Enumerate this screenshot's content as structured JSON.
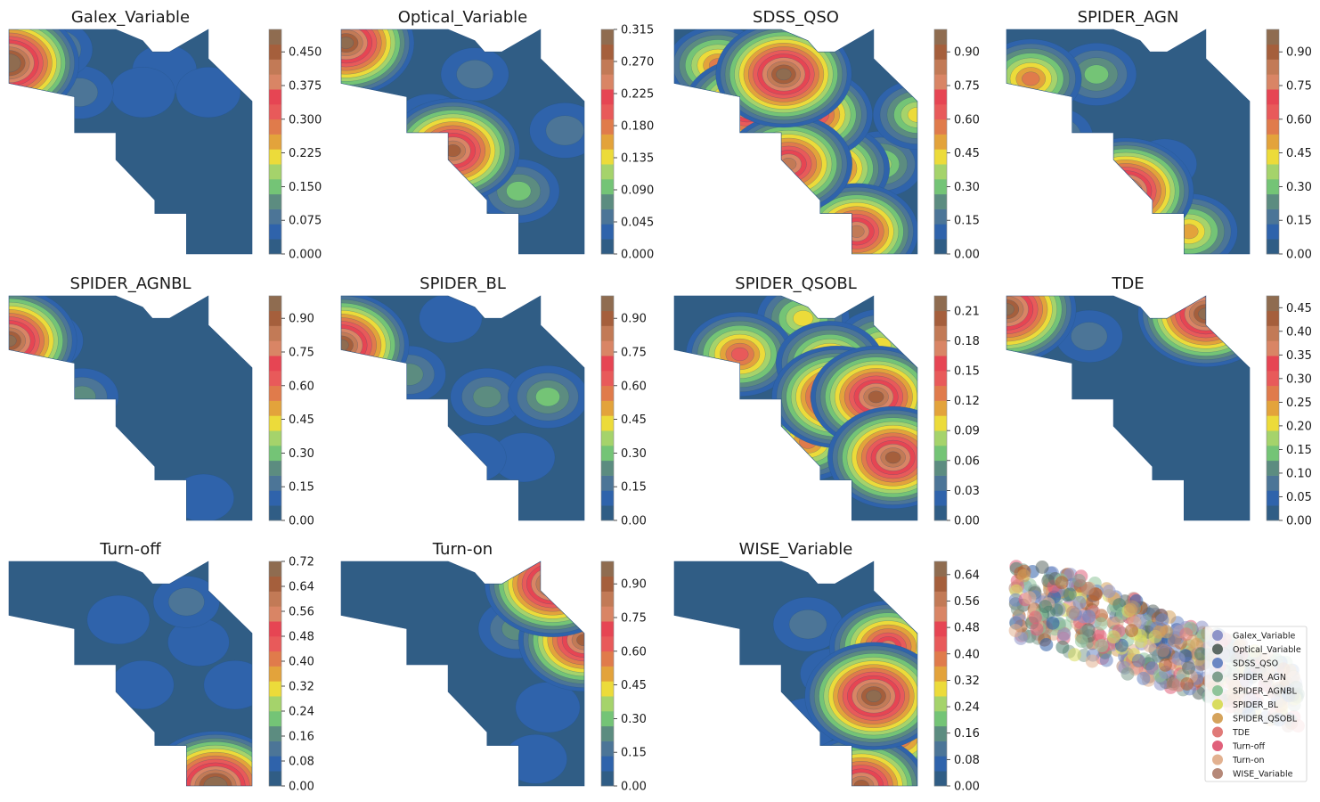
{
  "palette": [
    "#305d85",
    "#2f63ab",
    "#4c7597",
    "#5c8c80",
    "#74c476",
    "#a5d36b",
    "#ecdb3a",
    "#e3a33b",
    "#e07b4b",
    "#e85a5a",
    "#e64553",
    "#d98565",
    "#c27a56",
    "#a55f3c",
    "#8f6c50"
  ],
  "chart_data": [
    {
      "type": "contour",
      "title": "Galex_Variable",
      "colorbar_ticks": [
        "0.000",
        "0.075",
        "0.150",
        "0.225",
        "0.300",
        "0.375",
        "0.450"
      ],
      "vmax": 0.5,
      "hotspots": [
        {
          "level": 0.5,
          "x": 0,
          "y": 0.15
        },
        {
          "level": 0.12,
          "x": 0.19,
          "y": 0.09
        },
        {
          "level": 0.08,
          "x": 0.29,
          "y": 0.28
        },
        {
          "level": 0.06,
          "x": 0.64,
          "y": 0.18
        },
        {
          "level": 0.06,
          "x": 0.55,
          "y": 0.28
        },
        {
          "level": 0.06,
          "x": 0.82,
          "y": 0.28
        }
      ]
    },
    {
      "type": "contour",
      "title": "Optical_Variable",
      "colorbar_ticks": [
        "0.000",
        "0.045",
        "0.090",
        "0.135",
        "0.180",
        "0.225",
        "0.270",
        "0.315"
      ],
      "vmax": 0.315,
      "hotspots": [
        {
          "level": 0.3,
          "x": 0.02,
          "y": 0.06
        },
        {
          "level": 0.29,
          "x": 0.46,
          "y": 0.54
        },
        {
          "level": 0.1,
          "x": 0.73,
          "y": 0.72
        },
        {
          "level": 0.08,
          "x": 0.37,
          "y": 0.42
        },
        {
          "level": 0.06,
          "x": 0.92,
          "y": 0.45
        },
        {
          "level": 0.05,
          "x": 0.55,
          "y": 0.2
        }
      ]
    },
    {
      "type": "contour",
      "title": "SDSS_QSO",
      "colorbar_ticks": [
        "0.00",
        "0.15",
        "0.30",
        "0.45",
        "0.60",
        "0.75",
        "0.90"
      ],
      "vmax": 1,
      "hotspots": [
        {
          "level": 0.95,
          "x": 0.45,
          "y": 0.2
        },
        {
          "level": 0.85,
          "x": 0.3,
          "y": 0.35
        },
        {
          "level": 0.85,
          "x": 0.47,
          "y": 0.6
        },
        {
          "level": 0.7,
          "x": 0.65,
          "y": 0.62
        },
        {
          "level": 0.55,
          "x": 0.18,
          "y": 0.16
        },
        {
          "level": 0.7,
          "x": 0.58,
          "y": 0.38
        },
        {
          "level": 0.4,
          "x": 1,
          "y": 0.38
        },
        {
          "level": 0.05,
          "x": 0.04,
          "y": 0.35
        },
        {
          "level": 0.35,
          "x": 0.85,
          "y": 0.6
        },
        {
          "level": 0.8,
          "x": 0.75,
          "y": 0.9
        }
      ]
    },
    {
      "type": "contour",
      "title": "SPIDER_AGN",
      "colorbar_ticks": [
        "0.00",
        "0.15",
        "0.30",
        "0.45",
        "0.60",
        "0.75",
        "0.90"
      ],
      "vmax": 1,
      "hotspots": [
        {
          "level": 0.55,
          "x": 0.1,
          "y": 0.22
        },
        {
          "level": 0.3,
          "x": 0.37,
          "y": 0.2
        },
        {
          "level": 0.25,
          "x": 0.2,
          "y": 0.48
        },
        {
          "level": 0.95,
          "x": 0.49,
          "y": 0.72
        },
        {
          "level": 0.5,
          "x": 0.75,
          "y": 0.9
        },
        {
          "level": 0.12,
          "x": 0.65,
          "y": 0.6
        }
      ]
    },
    {
      "type": "contour",
      "title": "SPIDER_AGNBL",
      "colorbar_ticks": [
        "0.00",
        "0.15",
        "0.30",
        "0.45",
        "0.60",
        "0.75",
        "0.90"
      ],
      "vmax": 1,
      "hotspots": [
        {
          "level": 0.95,
          "x": 0,
          "y": 0.2
        },
        {
          "level": 0.25,
          "x": 0.15,
          "y": 0.2
        },
        {
          "level": 0.22,
          "x": 0.3,
          "y": 0.45
        },
        {
          "level": 0.08,
          "x": 0.8,
          "y": 0.9
        }
      ]
    },
    {
      "type": "contour",
      "title": "SPIDER_BL",
      "colorbar_ticks": [
        "0.00",
        "0.15",
        "0.30",
        "0.45",
        "0.60",
        "0.75",
        "0.90"
      ],
      "vmax": 1,
      "hotspots": [
        {
          "level": 0.95,
          "x": 0,
          "y": 0.22
        },
        {
          "level": 0.22,
          "x": 0.28,
          "y": 0.35
        },
        {
          "level": 0.3,
          "x": 0.85,
          "y": 0.45
        },
        {
          "level": 0.22,
          "x": 0.6,
          "y": 0.45
        },
        {
          "level": 0.1,
          "x": 0.45,
          "y": 0.1
        },
        {
          "level": 0.1,
          "x": 0.75,
          "y": 0.72
        },
        {
          "level": 0.1,
          "x": 0.55,
          "y": 0.72
        }
      ]
    },
    {
      "type": "contour",
      "title": "SPIDER_QSOBL",
      "colorbar_ticks": [
        "0.00",
        "0.03",
        "0.06",
        "0.09",
        "0.12",
        "0.15",
        "0.18",
        "0.21"
      ],
      "vmax": 0.225,
      "hotspots": [
        {
          "level": 0.2,
          "x": 0.67,
          "y": 0.45
        },
        {
          "level": 0.2,
          "x": 0.83,
          "y": 0.45
        },
        {
          "level": 0.2,
          "x": 0.9,
          "y": 0.72
        },
        {
          "level": 0.14,
          "x": 0.27,
          "y": 0.26
        },
        {
          "level": 0.12,
          "x": 0.55,
          "y": 0.65
        },
        {
          "level": 0.1,
          "x": 0.53,
          "y": 0.1
        },
        {
          "level": 0.1,
          "x": 0.85,
          "y": 0.22
        },
        {
          "level": 0.14,
          "x": 0.64,
          "y": 0.3
        },
        {
          "level": 0.11,
          "x": 0.82,
          "y": 0.63
        }
      ]
    },
    {
      "type": "contour",
      "title": "TDE",
      "colorbar_ticks": [
        "0.00",
        "0.05",
        "0.10",
        "0.15",
        "0.20",
        "0.25",
        "0.30",
        "0.35",
        "0.40",
        "0.45"
      ],
      "vmax": 0.475,
      "hotspots": [
        {
          "level": 0.47,
          "x": 0,
          "y": 0.06
        },
        {
          "level": 0.45,
          "x": 0.82,
          "y": 0.08
        },
        {
          "level": 0.07,
          "x": 0.34,
          "y": 0.18
        }
      ]
    },
    {
      "type": "contour",
      "title": "Turn-off",
      "colorbar_ticks": [
        "0.00",
        "0.08",
        "0.16",
        "0.24",
        "0.32",
        "0.40",
        "0.48",
        "0.56",
        "0.64",
        "0.72"
      ],
      "vmax": 0.72,
      "hotspots": [
        {
          "level": 0.72,
          "x": 0.85,
          "y": 1
        },
        {
          "level": 0.1,
          "x": 0.73,
          "y": 0.18
        },
        {
          "level": 0.07,
          "x": 0.45,
          "y": 0.26
        },
        {
          "level": 0.07,
          "x": 0.55,
          "y": 0.55
        },
        {
          "level": 0.07,
          "x": 0.93,
          "y": 0.55
        },
        {
          "level": 0.06,
          "x": 0.78,
          "y": 0.36
        }
      ]
    },
    {
      "type": "contour",
      "title": "Turn-on",
      "colorbar_ticks": [
        "0.00",
        "0.15",
        "0.30",
        "0.45",
        "0.60",
        "0.75",
        "0.90"
      ],
      "vmax": 1,
      "hotspots": [
        {
          "level": 0.95,
          "x": 0.87,
          "y": 0.1
        },
        {
          "level": 0.9,
          "x": 1,
          "y": 0.35
        },
        {
          "level": 0.25,
          "x": 0.72,
          "y": 0.3
        },
        {
          "level": 0.12,
          "x": 0.85,
          "y": 0.65
        },
        {
          "level": 0.1,
          "x": 0.8,
          "y": 0.88
        }
      ]
    },
    {
      "type": "contour",
      "title": "WISE_Variable",
      "colorbar_ticks": [
        "0.00",
        "0.08",
        "0.16",
        "0.24",
        "0.32",
        "0.40",
        "0.48",
        "0.56",
        "0.64"
      ],
      "vmax": 0.68,
      "hotspots": [
        {
          "level": 0.66,
          "x": 0.82,
          "y": 0.6
        },
        {
          "level": 0.5,
          "x": 0.88,
          "y": 0.38
        },
        {
          "level": 0.45,
          "x": 0.92,
          "y": 0.78
        },
        {
          "level": 0.6,
          "x": 0.77,
          "y": 1
        },
        {
          "level": 0.12,
          "x": 0.55,
          "y": 0.28
        },
        {
          "level": 0.08,
          "x": 0.65,
          "y": 0.5
        },
        {
          "level": 0.08,
          "x": 0.55,
          "y": 0.72
        }
      ]
    },
    {
      "type": "scatter",
      "title": "",
      "legend_position": "lower-right",
      "series": [
        {
          "name": "Galex_Variable",
          "color": "#8e93c8"
        },
        {
          "name": "Optical_Variable",
          "color": "#5d6a64"
        },
        {
          "name": "SDSS_QSO",
          "color": "#6b87c3"
        },
        {
          "name": "SPIDER_AGN",
          "color": "#7f9f8f"
        },
        {
          "name": "SPIDER_AGNBL",
          "color": "#8fc49a"
        },
        {
          "name": "SPIDER_BL",
          "color": "#d9dc5e"
        },
        {
          "name": "SPIDER_QSOBL",
          "color": "#d5a35c"
        },
        {
          "name": "TDE",
          "color": "#e07a78"
        },
        {
          "name": "Turn-off",
          "color": "#e0607a"
        },
        {
          "name": "Turn-on",
          "color": "#e2b190"
        },
        {
          "name": "WISE_Variable",
          "color": "#b58878"
        }
      ]
    }
  ]
}
